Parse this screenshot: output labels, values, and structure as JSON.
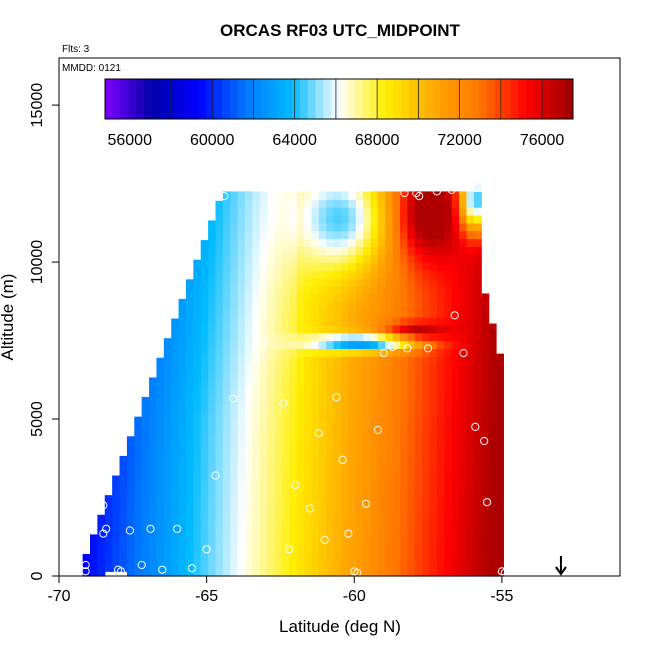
{
  "chart_data": {
    "type": "heatmap",
    "title": "ORCAS RF03 UTC_MIDPOINT",
    "annotations": {
      "flts": "Flts: 3",
      "mmdd": "MMDD: 0121"
    },
    "xlabel": "Latitude (deg N)",
    "ylabel": "Altitude (m)",
    "xlim": [
      -70,
      -51
    ],
    "ylim": [
      0,
      16500
    ],
    "x_ticks": [
      -70,
      -65,
      -60,
      -55
    ],
    "x_tick_labels": [
      "-70",
      "-65",
      "-60",
      "-55"
    ],
    "y_ticks": [
      0,
      5000,
      10000,
      15000
    ],
    "y_tick_labels": [
      "0",
      "5000",
      "10000",
      "15000"
    ],
    "colorbar": {
      "range": [
        54800,
        77500
      ],
      "ticks": [
        56000,
        60000,
        64000,
        68000,
        72000,
        76000
      ],
      "tick_labels": [
        "56000",
        "60000",
        "64000",
        "68000",
        "72000",
        "76000"
      ],
      "colors": [
        "#7f00ff",
        "#0000aa",
        "#0000ff",
        "#0077ff",
        "#00bbff",
        "#ffffff",
        "#ffee00",
        "#ffaa00",
        "#ff7700",
        "#ff0000",
        "#990000"
      ]
    },
    "field": {
      "lat_min": -69.2,
      "lat_max": -55.0,
      "cell_lat": 0.25,
      "cell_alt": 250,
      "value_min": 56000,
      "value_max": 77000
    },
    "arrow_marker_lat": -53,
    "observations": [
      [
        -69.1,
        350
      ],
      [
        -69.1,
        150
      ],
      [
        -68.4,
        1500
      ],
      [
        -68.5,
        1350
      ],
      [
        -68.5,
        2250
      ],
      [
        -68.0,
        200
      ],
      [
        -67.9,
        150
      ],
      [
        -67.6,
        1450
      ],
      [
        -67.2,
        350
      ],
      [
        -66.9,
        1500
      ],
      [
        -66.5,
        200
      ],
      [
        -66.0,
        1500
      ],
      [
        -65.5,
        250
      ],
      [
        -65.0,
        850
      ],
      [
        -64.7,
        3200
      ],
      [
        -64.4,
        12100
      ],
      [
        -64.1,
        5650
      ],
      [
        -63.2,
        7050
      ],
      [
        -62.4,
        5500
      ],
      [
        -62.0,
        2900
      ],
      [
        -62.2,
        850
      ],
      [
        -61.9,
        12150
      ],
      [
        -61.5,
        2150
      ],
      [
        -61.2,
        4550
      ],
      [
        -61.0,
        1150
      ],
      [
        -60.6,
        5700
      ],
      [
        -60.4,
        3700
      ],
      [
        -60.2,
        1350
      ],
      [
        -60.0,
        150
      ],
      [
        -59.9,
        100
      ],
      [
        -59.9,
        12200
      ],
      [
        -59.6,
        2300
      ],
      [
        -59.2,
        4650
      ],
      [
        -59.0,
        7100
      ],
      [
        -58.7,
        7300
      ],
      [
        -58.3,
        12200
      ],
      [
        -58.2,
        7250
      ],
      [
        -57.9,
        12200
      ],
      [
        -57.8,
        12100
      ],
      [
        -57.2,
        12250
      ],
      [
        -57.5,
        7250
      ],
      [
        -56.7,
        12300
      ],
      [
        -56.6,
        8300
      ],
      [
        -56.3,
        7100
      ],
      [
        -56.0,
        12550
      ],
      [
        -55.9,
        4750
      ],
      [
        -55.6,
        4300
      ],
      [
        -55.5,
        2350
      ],
      [
        -55.0,
        150
      ],
      [
        -54.9,
        100
      ]
    ]
  }
}
